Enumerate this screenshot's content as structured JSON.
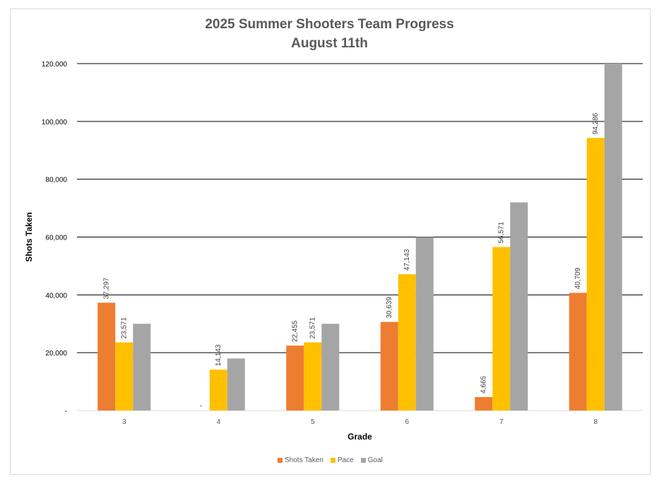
{
  "chart_data": {
    "type": "bar",
    "title": "2025 Summer Shooters Team Progress",
    "subtitle": "August 11th",
    "xlabel": "Grade",
    "ylabel": "Shots Taken",
    "categories": [
      "3",
      "4",
      "5",
      "6",
      "7",
      "8"
    ],
    "ylim": [
      0,
      120000
    ],
    "yticks": [
      0,
      20000,
      40000,
      60000,
      80000,
      100000,
      120000
    ],
    "ytick_labels": [
      "-",
      "20,000",
      "40,000",
      "60,000",
      "80,000",
      "100,000",
      "120,000"
    ],
    "grid": true,
    "legend_position": "bottom",
    "series": [
      {
        "name": "Shots Taken",
        "color": "#ED7D31",
        "values": [
          37297,
          0,
          22455,
          30639,
          4665,
          40709
        ],
        "labels": [
          "37,297",
          "-",
          "22,455",
          "30,639",
          "4,665",
          "40,709"
        ]
      },
      {
        "name": "Pace",
        "color": "#FFC000",
        "values": [
          23571,
          14143,
          23571,
          47143,
          56571,
          94286
        ],
        "labels": [
          "23,571",
          "14,143",
          "23,571",
          "47,143",
          "56,571",
          "94,286"
        ]
      },
      {
        "name": "Goal",
        "color": "#A5A5A5",
        "values": [
          30000,
          18000,
          30000,
          60000,
          72000,
          120000
        ],
        "labels": []
      }
    ]
  }
}
